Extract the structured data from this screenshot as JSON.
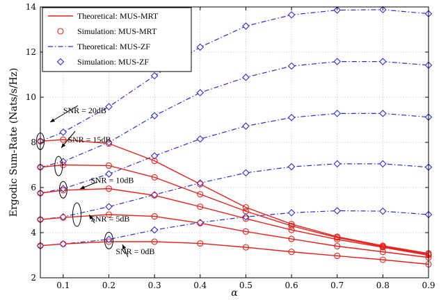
{
  "chart_data": {
    "type": "line",
    "xlabel": "α",
    "ylabel": "Ergodic Sum-Rate (Nats/s/Hz)",
    "xlim": [
      0.05,
      0.9
    ],
    "ylim": [
      2,
      14
    ],
    "xticks": [
      0.1,
      0.2,
      0.3,
      0.4,
      0.5,
      0.6,
      0.7,
      0.8,
      0.9
    ],
    "xtick_labels": [
      "0.1",
      "0.2",
      "0.3",
      "0.4",
      "0.5",
      "0.6",
      "0.7",
      "0.8",
      "0.9"
    ],
    "yticks": [
      2,
      4,
      6,
      8,
      10,
      12,
      14
    ],
    "ytick_labels": [
      "2",
      "4",
      "6",
      "8",
      "10",
      "12",
      "14"
    ],
    "grid": true,
    "legend_position": "top-left",
    "legend": [
      {
        "label": "Theoretical: MUS-MRT",
        "style": "solid-line",
        "color": "#e8201a"
      },
      {
        "label": "Simulation: MUS-MRT",
        "style": "circle-marker",
        "color": "#e8201a"
      },
      {
        "label": "Theoretical: MUS-ZF",
        "style": "dashdot-line",
        "color": "#2a2ad9"
      },
      {
        "label": "Simulation: MUS-ZF",
        "style": "diamond-marker",
        "color": "#2a2ad9"
      }
    ],
    "x": [
      0.05,
      0.1,
      0.2,
      0.3,
      0.4,
      0.5,
      0.6,
      0.7,
      0.8,
      0.9
    ],
    "mrt_series": [
      {
        "snr": "0dB",
        "values": [
          3.42,
          3.5,
          3.6,
          3.6,
          3.52,
          3.35,
          3.15,
          2.97,
          2.8,
          2.6
        ]
      },
      {
        "snr": "5dB",
        "values": [
          4.58,
          4.67,
          4.8,
          4.72,
          4.42,
          4.05,
          3.72,
          3.4,
          3.15,
          2.9
        ]
      },
      {
        "snr": "10dB",
        "values": [
          5.75,
          5.88,
          5.95,
          5.65,
          5.15,
          4.62,
          4.12,
          3.7,
          3.35,
          3.0
        ]
      },
      {
        "snr": "15dB",
        "values": [
          6.9,
          7.0,
          6.97,
          6.45,
          5.7,
          4.95,
          4.3,
          3.78,
          3.38,
          3.05
        ]
      },
      {
        "snr": "20dB",
        "values": [
          8.05,
          8.12,
          7.95,
          7.18,
          6.15,
          5.12,
          4.38,
          3.82,
          3.42,
          3.08
        ]
      }
    ],
    "zf_series": [
      {
        "snr": "0dB",
        "values": [
          3.42,
          3.5,
          3.7,
          4.12,
          4.45,
          4.7,
          4.88,
          4.97,
          4.95,
          4.8
        ]
      },
      {
        "snr": "5dB",
        "values": [
          4.58,
          4.7,
          5.15,
          5.68,
          6.2,
          6.65,
          6.92,
          7.05,
          7.05,
          6.9
        ]
      },
      {
        "snr": "10dB",
        "values": [
          5.75,
          5.95,
          6.6,
          7.4,
          8.15,
          8.72,
          9.1,
          9.28,
          9.28,
          9.12
        ]
      },
      {
        "snr": "15dB",
        "values": [
          6.9,
          7.15,
          8.0,
          9.18,
          10.2,
          10.88,
          11.38,
          11.58,
          11.58,
          11.42
        ]
      },
      {
        "snr": "20dB",
        "values": [
          8.05,
          8.45,
          9.58,
          10.95,
          12.22,
          13.15,
          13.65,
          13.86,
          13.88,
          13.7
        ]
      }
    ],
    "annotations": [
      {
        "text": "SNR = 20dB",
        "x": 0.1,
        "y": 9.3
      },
      {
        "text": "SNR = 15dB",
        "x": 0.11,
        "y": 8.0
      },
      {
        "text": "SNR = 10dB",
        "x": 0.16,
        "y": 6.2
      },
      {
        "text": "SNR = 5dB",
        "x": 0.16,
        "y": 4.5
      },
      {
        "text": "SNR = 0dB",
        "x": 0.215,
        "y": 3.05
      }
    ],
    "colors": {
      "mrt": "#e8201a",
      "zf": "#2a2ad9",
      "grid": "#c8c8c8",
      "axis": "#000000"
    }
  }
}
